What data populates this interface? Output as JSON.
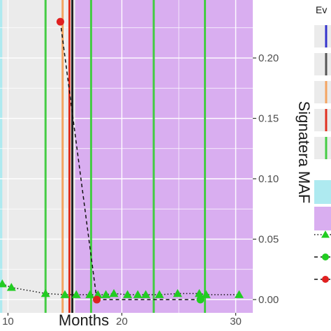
{
  "chart_data": {
    "type": "line",
    "title": "",
    "xlabel": "Months",
    "ylabel": "Signatera MAF",
    "xlim": [
      9.3,
      31.5
    ],
    "ylim": [
      -0.011,
      0.248
    ],
    "x_ticks": [
      10,
      20,
      30
    ],
    "x_tick_labels": [
      "10",
      "20",
      "30"
    ],
    "y_ticks": [
      0.0,
      0.05,
      0.1,
      0.15,
      0.2
    ],
    "y_tick_labels": [
      "0.00",
      "0.05",
      "0.10",
      "0.15",
      "0.20"
    ],
    "grid": true,
    "y_axis_position": "right",
    "shaded_regions": [
      {
        "x_start": 9.3,
        "x_end": 9.5,
        "color": "#aeeaf0"
      },
      {
        "x_start": 15.9,
        "x_end": 31.5,
        "color": "#d9aef0"
      }
    ],
    "event_lines": [
      {
        "x": 13.3,
        "color": "#44cc44"
      },
      {
        "x": 14.8,
        "color": "#f4a460"
      },
      {
        "x": 15.4,
        "color": "#e03020"
      },
      {
        "x": 15.65,
        "color": "#222222"
      },
      {
        "x": 17.3,
        "color": "#44cc44"
      },
      {
        "x": 22.8,
        "color": "#44cc44"
      },
      {
        "x": 27.3,
        "color": "#44cc44"
      }
    ],
    "series": [
      {
        "marker": "triangle",
        "color": "#22cc22",
        "line_style": "dotted",
        "x": [
          9.5,
          10.3,
          13.3,
          15.0,
          16.0,
          17.2,
          17.9,
          18.6,
          19.3,
          20.5,
          21.4,
          22.1,
          23.3,
          24.9,
          26.8,
          27.4,
          30.3
        ],
        "y": [
          0.013,
          0.01,
          0.005,
          0.004,
          0.004,
          0.004,
          0.004,
          0.004,
          0.005,
          0.004,
          0.004,
          0.004,
          0.004,
          0.005,
          0.005,
          0.004,
          0.004
        ]
      },
      {
        "marker": "circle",
        "color": "#22cc22",
        "line_style": "dashed",
        "x": [
          17.8,
          26.9
        ],
        "y": [
          0.0,
          0.0
        ]
      },
      {
        "marker": "circle",
        "color": "#e02020",
        "line_style": "dashed",
        "x": [
          14.6,
          17.8
        ],
        "y": [
          0.23,
          0.0
        ]
      }
    ],
    "legend": {
      "title": "Ev",
      "position": "right",
      "line_colors": [
        "#3333cc",
        "#555555",
        "#f4a460",
        "#e03020",
        "#44cc44"
      ],
      "fill_colors": [
        "#aeeaf0",
        "#d9aef0"
      ],
      "marker_entries": [
        {
          "marker": "triangle",
          "color": "#22cc22",
          "line_style": "dotted"
        },
        {
          "marker": "circle",
          "color": "#22cc22",
          "line_style": "dashed"
        },
        {
          "marker": "circle",
          "color": "#e02020",
          "line_style": "dashed"
        }
      ]
    }
  }
}
